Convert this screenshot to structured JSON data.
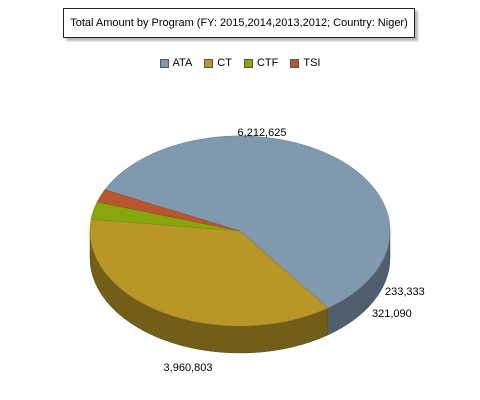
{
  "chart_data": {
    "type": "pie",
    "title": "Total Amount by Program (FY: 2015,2014,2013,2012; Country: Niger)",
    "legend_position": "top",
    "slices": [
      {
        "name": "ATA",
        "value": 6212625,
        "label": "6,212,625",
        "color": "#8199af"
      },
      {
        "name": "CT",
        "value": 3960803,
        "label": "3,960,803",
        "color": "#b89628"
      },
      {
        "name": "CTF",
        "value": 321090,
        "label": "321,090",
        "color": "#87a60c"
      },
      {
        "name": "TSI",
        "value": 233333,
        "label": "233,333",
        "color": "#b8572d"
      }
    ]
  }
}
